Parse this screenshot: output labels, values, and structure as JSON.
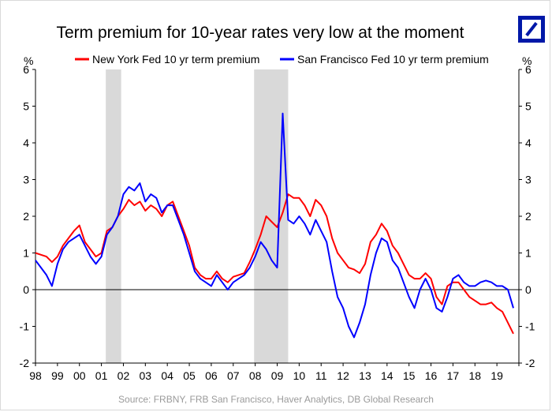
{
  "title": "Term premium for 10-year rates very low at the moment",
  "source": "Source: FRBNY, FRB San Francisco, Haver Analytics, DB Global Research",
  "colors": {
    "ny": "#ff0000",
    "sf": "#0000ff",
    "recession": "#d9d9d9",
    "brand": "#0018a8"
  },
  "logo": "deutsche-bank-logo",
  "chart_data": {
    "type": "line",
    "ylabel_left": "%",
    "ylabel_right": "%",
    "ylim": [
      -2,
      6
    ],
    "yticks": [
      "-2",
      "-1",
      "0",
      "1",
      "2",
      "3",
      "4",
      "5",
      "6"
    ],
    "xlim": [
      1998.0,
      2020.0
    ],
    "xtick_labels": [
      "98",
      "99",
      "00",
      "01",
      "02",
      "03",
      "04",
      "05",
      "06",
      "07",
      "08",
      "09",
      "10",
      "11",
      "12",
      "13",
      "14",
      "15",
      "16",
      "17",
      "18",
      "19"
    ],
    "grid": false,
    "legend_position": "top",
    "recession_shading": [
      [
        2001.2,
        2001.9
      ],
      [
        2007.95,
        2009.5
      ]
    ],
    "series": [
      {
        "name": "New York Fed 10 yr term premium",
        "color": "#ff0000",
        "x": [
          1998.0,
          1998.25,
          1998.5,
          1998.75,
          1999.0,
          1999.25,
          1999.5,
          1999.75,
          2000.0,
          2000.25,
          2000.5,
          2000.75,
          2001.0,
          2001.25,
          2001.5,
          2001.75,
          2002.0,
          2002.25,
          2002.5,
          2002.75,
          2003.0,
          2003.25,
          2003.5,
          2003.75,
          2004.0,
          2004.25,
          2004.5,
          2004.75,
          2005.0,
          2005.25,
          2005.5,
          2005.75,
          2006.0,
          2006.25,
          2006.5,
          2006.75,
          2007.0,
          2007.25,
          2007.5,
          2007.75,
          2008.0,
          2008.25,
          2008.5,
          2008.75,
          2009.0,
          2009.25,
          2009.5,
          2009.75,
          2010.0,
          2010.25,
          2010.5,
          2010.75,
          2011.0,
          2011.25,
          2011.5,
          2011.75,
          2012.0,
          2012.25,
          2012.5,
          2012.75,
          2013.0,
          2013.25,
          2013.5,
          2013.75,
          2014.0,
          2014.25,
          2014.5,
          2014.75,
          2015.0,
          2015.25,
          2015.5,
          2015.75,
          2016.0,
          2016.25,
          2016.5,
          2016.75,
          2017.0,
          2017.25,
          2017.5,
          2017.75,
          2018.0,
          2018.25,
          2018.5,
          2018.75,
          2019.0,
          2019.25,
          2019.5,
          2019.75
        ],
        "values": [
          1.0,
          0.95,
          0.9,
          0.75,
          0.9,
          1.2,
          1.4,
          1.6,
          1.75,
          1.3,
          1.1,
          0.9,
          1.0,
          1.6,
          1.7,
          2.0,
          2.2,
          2.45,
          2.3,
          2.4,
          2.15,
          2.3,
          2.2,
          2.0,
          2.3,
          2.4,
          2.0,
          1.6,
          1.2,
          0.6,
          0.4,
          0.3,
          0.3,
          0.5,
          0.3,
          0.2,
          0.35,
          0.4,
          0.45,
          0.75,
          1.1,
          1.5,
          2.0,
          1.85,
          1.7,
          2.1,
          2.6,
          2.5,
          2.5,
          2.3,
          2.0,
          2.45,
          2.3,
          2.0,
          1.4,
          1.0,
          0.8,
          0.6,
          0.55,
          0.45,
          0.7,
          1.3,
          1.5,
          1.8,
          1.6,
          1.2,
          1.0,
          0.7,
          0.4,
          0.3,
          0.3,
          0.45,
          0.3,
          -0.2,
          -0.4,
          0.1,
          0.2,
          0.2,
          0.0,
          -0.2,
          -0.3,
          -0.4,
          -0.4,
          -0.35,
          -0.5,
          -0.6,
          -0.9,
          -1.2
        ]
      },
      {
        "name": "San Francisco Fed 10 yr term premium",
        "color": "#0000ff",
        "x": [
          1998.0,
          1998.25,
          1998.5,
          1998.75,
          1999.0,
          1999.25,
          1999.5,
          1999.75,
          2000.0,
          2000.25,
          2000.5,
          2000.75,
          2001.0,
          2001.25,
          2001.5,
          2001.75,
          2002.0,
          2002.25,
          2002.5,
          2002.75,
          2003.0,
          2003.25,
          2003.5,
          2003.75,
          2004.0,
          2004.25,
          2004.5,
          2004.75,
          2005.0,
          2005.25,
          2005.5,
          2005.75,
          2006.0,
          2006.25,
          2006.5,
          2006.75,
          2007.0,
          2007.25,
          2007.5,
          2007.75,
          2008.0,
          2008.25,
          2008.5,
          2008.75,
          2009.0,
          2009.25,
          2009.5,
          2009.75,
          2010.0,
          2010.25,
          2010.5,
          2010.75,
          2011.0,
          2011.25,
          2011.5,
          2011.75,
          2012.0,
          2012.25,
          2012.5,
          2012.75,
          2013.0,
          2013.25,
          2013.5,
          2013.75,
          2014.0,
          2014.25,
          2014.5,
          2014.75,
          2015.0,
          2015.25,
          2015.5,
          2015.75,
          2016.0,
          2016.25,
          2016.5,
          2016.75,
          2017.0,
          2017.25,
          2017.5,
          2017.75,
          2018.0,
          2018.25,
          2018.5,
          2018.75,
          2019.0,
          2019.25,
          2019.5,
          2019.75
        ],
        "values": [
          0.8,
          0.6,
          0.4,
          0.1,
          0.7,
          1.1,
          1.3,
          1.4,
          1.5,
          1.2,
          0.9,
          0.7,
          0.9,
          1.5,
          1.7,
          2.0,
          2.6,
          2.8,
          2.7,
          2.9,
          2.4,
          2.6,
          2.5,
          2.1,
          2.3,
          2.3,
          1.9,
          1.5,
          1.0,
          0.5,
          0.3,
          0.2,
          0.1,
          0.4,
          0.2,
          0.0,
          0.2,
          0.3,
          0.4,
          0.6,
          0.9,
          1.3,
          1.1,
          0.8,
          0.6,
          4.8,
          1.9,
          1.8,
          2.0,
          1.8,
          1.5,
          1.9,
          1.6,
          1.3,
          0.5,
          -0.2,
          -0.5,
          -1.0,
          -1.3,
          -0.9,
          -0.4,
          0.4,
          1.0,
          1.4,
          1.3,
          0.8,
          0.6,
          0.2,
          -0.2,
          -0.5,
          0.0,
          0.3,
          0.0,
          -0.5,
          -0.6,
          -0.2,
          0.3,
          0.4,
          0.2,
          0.1,
          0.1,
          0.2,
          0.25,
          0.2,
          0.1,
          0.1,
          0.0,
          -0.5
        ]
      }
    ]
  }
}
